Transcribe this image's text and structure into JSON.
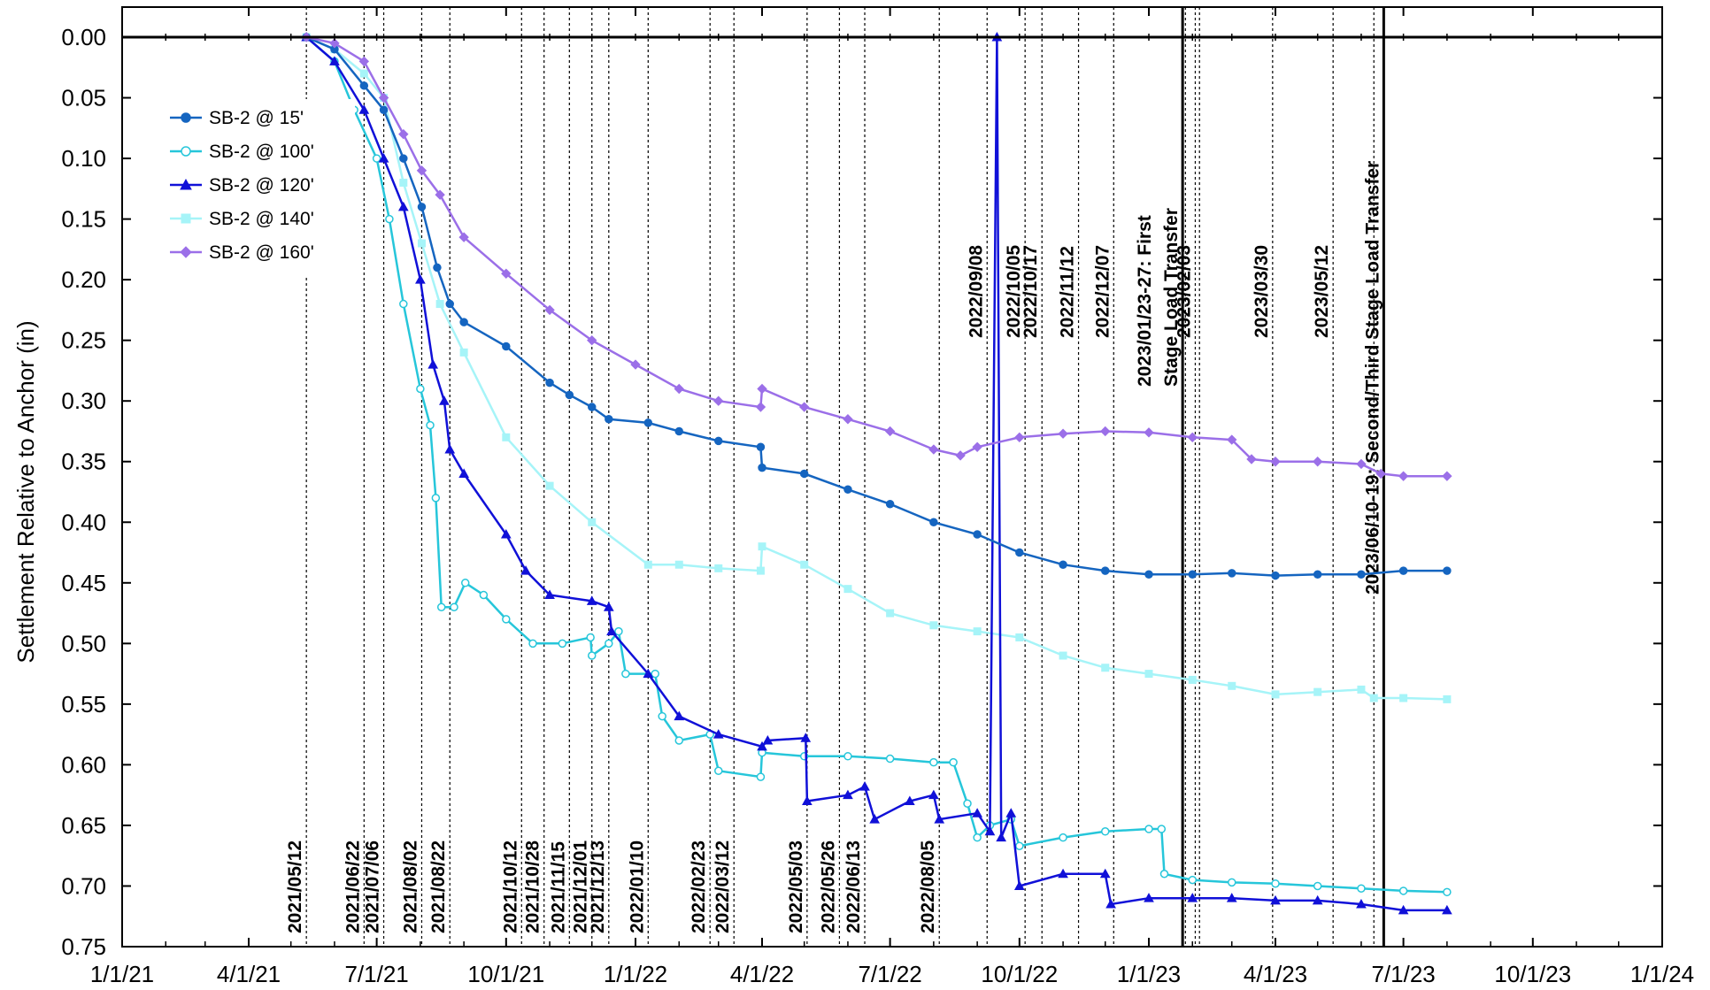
{
  "chart_data": {
    "type": "line",
    "ylabel": "Settlement Relative to Anchor (in)",
    "xlabel": "",
    "ylim": [
      0.75,
      0.0
    ],
    "y_inverted": true,
    "grid": "dashed",
    "legend_position": "top-left",
    "x_ticks": [
      {
        "date": "2021-01-01",
        "label": "1/1/21"
      },
      {
        "date": "2021-04-01",
        "label": "4/1/21"
      },
      {
        "date": "2021-07-01",
        "label": "7/1/21"
      },
      {
        "date": "2021-10-01",
        "label": "10/1/21"
      },
      {
        "date": "2022-01-01",
        "label": "1/1/22"
      },
      {
        "date": "2022-04-01",
        "label": "4/1/22"
      },
      {
        "date": "2022-07-01",
        "label": "7/1/22"
      },
      {
        "date": "2022-10-01",
        "label": "10/1/22"
      },
      {
        "date": "2023-01-01",
        "label": "1/1/23"
      },
      {
        "date": "2023-04-01",
        "label": "4/1/23"
      },
      {
        "date": "2023-07-01",
        "label": "7/1/23"
      },
      {
        "date": "2023-10-01",
        "label": "10/1/23"
      },
      {
        "date": "2024-01-01",
        "label": "1/1/24"
      }
    ],
    "y_ticks": [
      "0.00",
      "0.05",
      "0.10",
      "0.15",
      "0.20",
      "0.25",
      "0.30",
      "0.35",
      "0.40",
      "0.45",
      "0.50",
      "0.55",
      "0.60",
      "0.65",
      "0.70",
      "0.75"
    ],
    "events_dashed": [
      {
        "date": "2021-05-12",
        "label": "2021/05/12",
        "pos": "low"
      },
      {
        "date": "2021-06-22",
        "label": "2021/06/22",
        "pos": "low"
      },
      {
        "date": "2021-07-06",
        "label": "2021/07/06",
        "pos": "low"
      },
      {
        "date": "2021-08-02",
        "label": "2021/08/02",
        "pos": "low"
      },
      {
        "date": "2021-08-22",
        "label": "2021/08/22",
        "pos": "low"
      },
      {
        "date": "2021-10-12",
        "label": "2021/10/12",
        "pos": "low"
      },
      {
        "date": "2021-10-28",
        "label": "2021/10/28",
        "pos": "low"
      },
      {
        "date": "2021-11-15",
        "label": "2021/11/15",
        "pos": "low"
      },
      {
        "date": "2021-12-01",
        "label": "2021/12/01",
        "pos": "low"
      },
      {
        "date": "2021-12-13",
        "label": "2021/12/13",
        "pos": "low"
      },
      {
        "date": "2022-01-10",
        "label": "2022/01/10",
        "pos": "low"
      },
      {
        "date": "2022-02-23",
        "label": "2022/02/23",
        "pos": "low"
      },
      {
        "date": "2022-03-12",
        "label": "2022/03/12",
        "pos": "low"
      },
      {
        "date": "2022-05-03",
        "label": "2022/05/03",
        "pos": "low"
      },
      {
        "date": "2022-05-26",
        "label": "2022/05/26",
        "pos": "low"
      },
      {
        "date": "2022-06-13",
        "label": "2022/06/13",
        "pos": "low"
      },
      {
        "date": "2022-08-05",
        "label": "2022/08/05",
        "pos": "low"
      },
      {
        "date": "2022-09-08",
        "label": "2022/09/08",
        "pos": "high"
      },
      {
        "date": "2022-10-05",
        "label": "2022/10/05",
        "pos": "high"
      },
      {
        "date": "2022-10-17",
        "label": "2022/10/17",
        "pos": "high"
      },
      {
        "date": "2022-11-12",
        "label": "2022/11/12",
        "pos": "high"
      },
      {
        "date": "2022-12-07",
        "label": "2022/12/07",
        "pos": "high"
      },
      {
        "date": "2023-02-03",
        "label": "2023/02/03",
        "pos": "high"
      },
      {
        "date": "2023-03-30",
        "label": "2023/03/30",
        "pos": "high"
      },
      {
        "date": "2023-05-12",
        "label": "2023/05/12",
        "pos": "high"
      }
    ],
    "extra_dashed_dates": [
      "2023-01-27",
      "2023-02-06",
      "2023-06-10"
    ],
    "events_solid": [
      {
        "date": "2023-01-23",
        "line_date": "2023-01-25",
        "lines": [
          "2023/01/23-27: First",
          "Stage Load Transfer"
        ]
      },
      {
        "date": "2023-06-10",
        "line_date": "2023-06-17",
        "lines": [
          "2023/06/10-19: Second/Third Stage Load Transfer"
        ]
      }
    ],
    "series": [
      {
        "name": "SB-2 @ 15'",
        "color": "#1565c0",
        "marker": "circle",
        "filled": true,
        "points": [
          [
            "2021-05-12",
            0.0
          ],
          [
            "2021-06-01",
            0.01
          ],
          [
            "2021-06-22",
            0.04
          ],
          [
            "2021-07-06",
            0.06
          ],
          [
            "2021-07-20",
            0.1
          ],
          [
            "2021-08-02",
            0.14
          ],
          [
            "2021-08-13",
            0.19
          ],
          [
            "2021-08-22",
            0.22
          ],
          [
            "2021-09-01",
            0.235
          ],
          [
            "2021-10-01",
            0.255
          ],
          [
            "2021-11-01",
            0.285
          ],
          [
            "2021-11-15",
            0.295
          ],
          [
            "2021-12-01",
            0.305
          ],
          [
            "2021-12-13",
            0.315
          ],
          [
            "2022-01-10",
            0.318
          ],
          [
            "2022-02-01",
            0.325
          ],
          [
            "2022-03-01",
            0.333
          ],
          [
            "2022-03-31",
            0.338
          ],
          [
            "2022-04-01",
            0.355
          ],
          [
            "2022-05-01",
            0.36
          ],
          [
            "2022-06-01",
            0.373
          ],
          [
            "2022-07-01",
            0.385
          ],
          [
            "2022-08-01",
            0.4
          ],
          [
            "2022-09-01",
            0.41
          ],
          [
            "2022-10-01",
            0.425
          ],
          [
            "2022-11-01",
            0.435
          ],
          [
            "2022-12-01",
            0.44
          ],
          [
            "2023-01-01",
            0.443
          ],
          [
            "2023-02-01",
            0.443
          ],
          [
            "2023-03-01",
            0.442
          ],
          [
            "2023-04-01",
            0.444
          ],
          [
            "2023-05-01",
            0.443
          ],
          [
            "2023-06-01",
            0.443
          ],
          [
            "2023-07-01",
            0.44
          ],
          [
            "2023-08-01",
            0.44
          ]
        ]
      },
      {
        "name": "SB-2 @ 100'",
        "color": "#26c6da",
        "marker": "circle",
        "filled": false,
        "points": [
          [
            "2021-05-12",
            0.0
          ],
          [
            "2021-06-01",
            0.02
          ],
          [
            "2021-06-15",
            0.06
          ],
          [
            "2021-07-01",
            0.1
          ],
          [
            "2021-07-10",
            0.15
          ],
          [
            "2021-07-20",
            0.22
          ],
          [
            "2021-08-01",
            0.29
          ],
          [
            "2021-08-08",
            0.32
          ],
          [
            "2021-08-12",
            0.38
          ],
          [
            "2021-08-16",
            0.47
          ],
          [
            "2021-08-25",
            0.47
          ],
          [
            "2021-09-02",
            0.45
          ],
          [
            "2021-09-15",
            0.46
          ],
          [
            "2021-10-01",
            0.48
          ],
          [
            "2021-10-20",
            0.5
          ],
          [
            "2021-11-10",
            0.5
          ],
          [
            "2021-11-30",
            0.495
          ],
          [
            "2021-12-01",
            0.51
          ],
          [
            "2021-12-13",
            0.5
          ],
          [
            "2021-12-20",
            0.49
          ],
          [
            "2021-12-25",
            0.525
          ],
          [
            "2022-01-15",
            0.525
          ],
          [
            "2022-01-20",
            0.56
          ],
          [
            "2022-02-01",
            0.58
          ],
          [
            "2022-02-23",
            0.575
          ],
          [
            "2022-03-01",
            0.605
          ],
          [
            "2022-03-31",
            0.61
          ],
          [
            "2022-04-01",
            0.59
          ],
          [
            "2022-05-01",
            0.593
          ],
          [
            "2022-06-01",
            0.593
          ],
          [
            "2022-07-01",
            0.595
          ],
          [
            "2022-08-01",
            0.598
          ],
          [
            "2022-08-15",
            0.598
          ],
          [
            "2022-08-25",
            0.632
          ],
          [
            "2022-09-01",
            0.66
          ],
          [
            "2022-09-10",
            0.65
          ],
          [
            "2022-09-25",
            0.645
          ],
          [
            "2022-10-01",
            0.667
          ],
          [
            "2022-11-01",
            0.66
          ],
          [
            "2022-12-01",
            0.655
          ],
          [
            "2023-01-01",
            0.653
          ],
          [
            "2023-01-10",
            0.653
          ],
          [
            "2023-01-12",
            0.69
          ],
          [
            "2023-02-01",
            0.695
          ],
          [
            "2023-03-01",
            0.697
          ],
          [
            "2023-04-01",
            0.698
          ],
          [
            "2023-05-01",
            0.7
          ],
          [
            "2023-06-01",
            0.702
          ],
          [
            "2023-07-01",
            0.704
          ],
          [
            "2023-08-01",
            0.705
          ]
        ]
      },
      {
        "name": "SB-2 @ 120'",
        "color": "#1010d8",
        "marker": "triangle",
        "filled": true,
        "points": [
          [
            "2021-05-12",
            0.0
          ],
          [
            "2021-06-01",
            0.02
          ],
          [
            "2021-06-22",
            0.06
          ],
          [
            "2021-07-06",
            0.1
          ],
          [
            "2021-07-20",
            0.14
          ],
          [
            "2021-08-01",
            0.2
          ],
          [
            "2021-08-10",
            0.27
          ],
          [
            "2021-08-18",
            0.3
          ],
          [
            "2021-08-22",
            0.34
          ],
          [
            "2021-09-01",
            0.36
          ],
          [
            "2021-10-01",
            0.41
          ],
          [
            "2021-10-15",
            0.44
          ],
          [
            "2021-11-01",
            0.46
          ],
          [
            "2021-12-01",
            0.465
          ],
          [
            "2021-12-13",
            0.47
          ],
          [
            "2021-12-15",
            0.49
          ],
          [
            "2022-01-10",
            0.525
          ],
          [
            "2022-02-01",
            0.56
          ],
          [
            "2022-03-01",
            0.575
          ],
          [
            "2022-04-01",
            0.585
          ],
          [
            "2022-04-05",
            0.58
          ],
          [
            "2022-05-02",
            0.578
          ],
          [
            "2022-05-03",
            0.63
          ],
          [
            "2022-06-01",
            0.625
          ],
          [
            "2022-06-13",
            0.618
          ],
          [
            "2022-06-20",
            0.645
          ],
          [
            "2022-07-15",
            0.63
          ],
          [
            "2022-08-01",
            0.625
          ],
          [
            "2022-08-05",
            0.645
          ],
          [
            "2022-09-01",
            0.64
          ],
          [
            "2022-09-10",
            0.655
          ],
          [
            "2022-09-15",
            0.0
          ],
          [
            "2022-09-18",
            0.66
          ],
          [
            "2022-09-25",
            0.64
          ],
          [
            "2022-10-01",
            0.7
          ],
          [
            "2022-11-01",
            0.69
          ],
          [
            "2022-12-01",
            0.69
          ],
          [
            "2022-12-05",
            0.715
          ],
          [
            "2023-01-01",
            0.71
          ],
          [
            "2023-02-01",
            0.71
          ],
          [
            "2023-03-01",
            0.71
          ],
          [
            "2023-04-01",
            0.712
          ],
          [
            "2023-05-01",
            0.712
          ],
          [
            "2023-06-01",
            0.715
          ],
          [
            "2023-07-01",
            0.72
          ],
          [
            "2023-08-01",
            0.72
          ]
        ]
      },
      {
        "name": "SB-2 @ 140'",
        "color": "#a6f4f8",
        "marker": "square",
        "filled": true,
        "points": [
          [
            "2021-05-12",
            0.0
          ],
          [
            "2021-06-01",
            0.01
          ],
          [
            "2021-06-22",
            0.03
          ],
          [
            "2021-07-06",
            0.05
          ],
          [
            "2021-07-20",
            0.12
          ],
          [
            "2021-08-02",
            0.17
          ],
          [
            "2021-08-15",
            0.22
          ],
          [
            "2021-09-01",
            0.26
          ],
          [
            "2021-10-01",
            0.33
          ],
          [
            "2021-11-01",
            0.37
          ],
          [
            "2021-12-01",
            0.4
          ],
          [
            "2022-01-10",
            0.435
          ],
          [
            "2022-02-01",
            0.435
          ],
          [
            "2022-03-01",
            0.438
          ],
          [
            "2022-03-31",
            0.44
          ],
          [
            "2022-04-01",
            0.42
          ],
          [
            "2022-05-01",
            0.435
          ],
          [
            "2022-06-01",
            0.455
          ],
          [
            "2022-07-01",
            0.475
          ],
          [
            "2022-08-01",
            0.485
          ],
          [
            "2022-09-01",
            0.49
          ],
          [
            "2022-10-01",
            0.495
          ],
          [
            "2022-11-01",
            0.51
          ],
          [
            "2022-12-01",
            0.52
          ],
          [
            "2023-01-01",
            0.525
          ],
          [
            "2023-02-01",
            0.53
          ],
          [
            "2023-03-01",
            0.535
          ],
          [
            "2023-04-01",
            0.542
          ],
          [
            "2023-05-01",
            0.54
          ],
          [
            "2023-06-01",
            0.538
          ],
          [
            "2023-06-10",
            0.545
          ],
          [
            "2023-07-01",
            0.545
          ],
          [
            "2023-08-01",
            0.546
          ]
        ]
      },
      {
        "name": "SB-2 @ 160'",
        "color": "#9b6fe8",
        "marker": "diamond",
        "filled": true,
        "points": [
          [
            "2021-05-12",
            0.0
          ],
          [
            "2021-06-01",
            0.005
          ],
          [
            "2021-06-22",
            0.02
          ],
          [
            "2021-07-06",
            0.05
          ],
          [
            "2021-07-20",
            0.08
          ],
          [
            "2021-08-02",
            0.11
          ],
          [
            "2021-08-15",
            0.13
          ],
          [
            "2021-09-01",
            0.165
          ],
          [
            "2021-10-01",
            0.195
          ],
          [
            "2021-11-01",
            0.225
          ],
          [
            "2021-12-01",
            0.25
          ],
          [
            "2022-01-01",
            0.27
          ],
          [
            "2022-02-01",
            0.29
          ],
          [
            "2022-03-01",
            0.3
          ],
          [
            "2022-03-31",
            0.305
          ],
          [
            "2022-04-01",
            0.29
          ],
          [
            "2022-05-01",
            0.305
          ],
          [
            "2022-06-01",
            0.315
          ],
          [
            "2022-07-01",
            0.325
          ],
          [
            "2022-08-01",
            0.34
          ],
          [
            "2022-08-20",
            0.345
          ],
          [
            "2022-09-01",
            0.338
          ],
          [
            "2022-10-01",
            0.33
          ],
          [
            "2022-11-01",
            0.327
          ],
          [
            "2022-12-01",
            0.325
          ],
          [
            "2023-01-01",
            0.326
          ],
          [
            "2023-02-01",
            0.33
          ],
          [
            "2023-03-01",
            0.332
          ],
          [
            "2023-03-15",
            0.348
          ],
          [
            "2023-04-01",
            0.35
          ],
          [
            "2023-05-01",
            0.35
          ],
          [
            "2023-06-01",
            0.352
          ],
          [
            "2023-06-15",
            0.36
          ],
          [
            "2023-07-01",
            0.362
          ],
          [
            "2023-08-01",
            0.362
          ]
        ]
      }
    ]
  }
}
